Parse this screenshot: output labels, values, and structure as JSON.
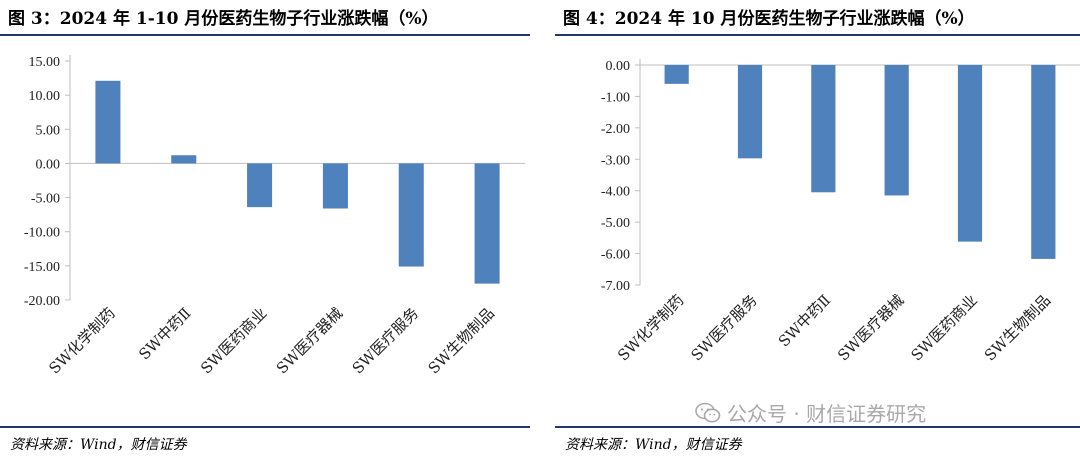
{
  "colors": {
    "bar": "#4f81bd",
    "rule": "#1f3a66",
    "axis": "#bfbfbf"
  },
  "left": {
    "title": "图 3：2024 年 1-10 月份医药生物子行业涨跌幅（%）",
    "source": "资料来源：Wind，财信证券"
  },
  "right": {
    "title": "图 4：2024 年 10 月份医药生物子行业涨跌幅（%）",
    "source": "资料来源：Wind，财信证券"
  },
  "watermark": "公众号 · 财信证券研究",
  "chart_data": [
    {
      "type": "bar",
      "categories": [
        "SW化学制药",
        "SW中药Ⅱ",
        "SW医药商业",
        "SW医疗器械",
        "SW医疗服务",
        "SW生物制品"
      ],
      "values": [
        12.1,
        1.2,
        -6.4,
        -6.6,
        -15.1,
        -17.6
      ],
      "ylim": [
        -20,
        15
      ],
      "yticks": [
        "15.00",
        "10.00",
        "5.00",
        "0.00",
        "-5.00",
        "-10.00",
        "-15.00",
        "-20.00"
      ],
      "title": "图 3：2024 年 1-10 月份医药生物子行业涨跌幅（%）"
    },
    {
      "type": "bar",
      "categories": [
        "SW化学制药",
        "SW医疗服务",
        "SW中药Ⅱ",
        "SW医疗器械",
        "SW医药商业",
        "SW生物制品"
      ],
      "values": [
        -0.6,
        -2.97,
        -4.05,
        -4.15,
        -5.62,
        -6.17
      ],
      "ylim": [
        -7,
        0
      ],
      "yticks": [
        "0.00",
        "-1.00",
        "-2.00",
        "-3.00",
        "-4.00",
        "-5.00",
        "-6.00",
        "-7.00"
      ],
      "title": "图 4：2024 年 10 月份医药生物子行业涨跌幅（%）"
    }
  ]
}
